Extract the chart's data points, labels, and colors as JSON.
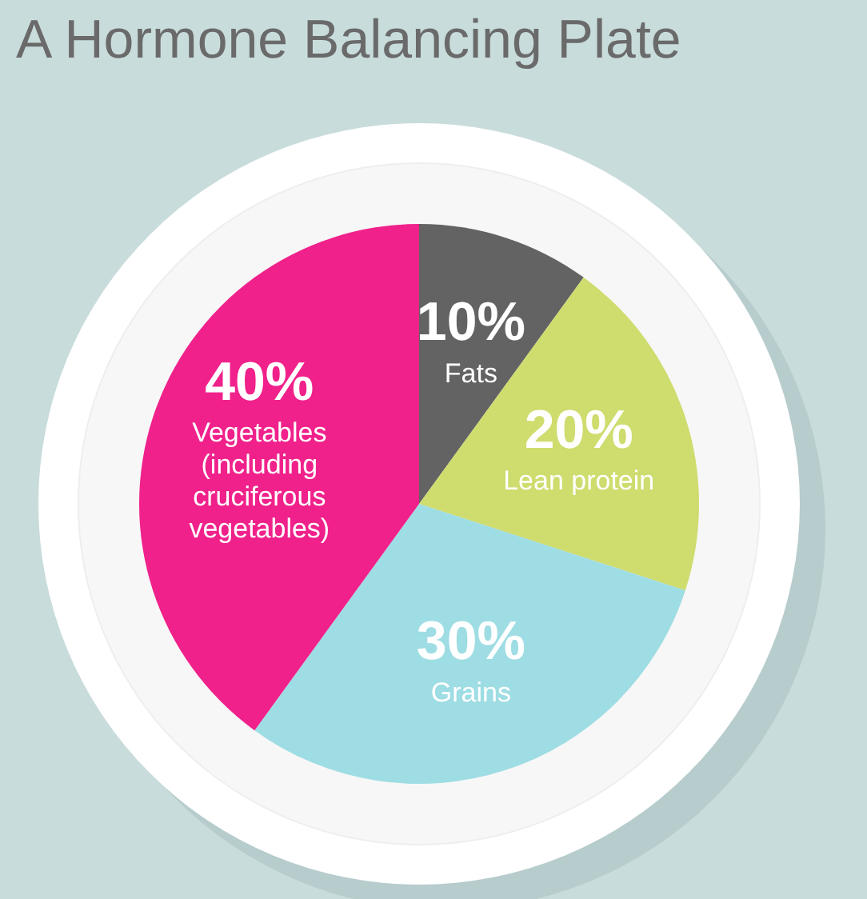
{
  "chart_data": {
    "type": "pie",
    "title": "A Hormone Balancing Plate",
    "categories": [
      "Fats",
      "Lean protein",
      "Grains",
      "Vegetables (including cruciferous vegetables)"
    ],
    "values": [
      10,
      20,
      30,
      40
    ],
    "value_labels": [
      "10%",
      "20%",
      "30%",
      "40%"
    ],
    "colors": [
      "#636363",
      "#cfdc6e",
      "#9edde3",
      "#f0218b"
    ],
    "legend": false
  }
}
